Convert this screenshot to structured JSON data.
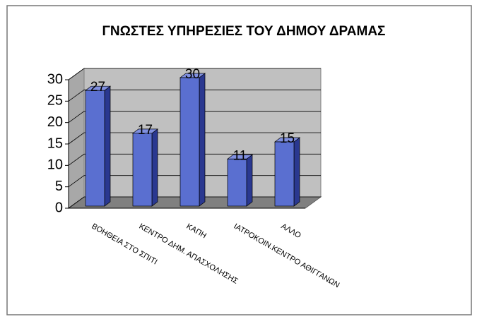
{
  "chart_data": {
    "type": "bar3d",
    "title": "ΓΝΩΣΤΕΣ ΥΠΗΡΕΣΙΕΣ ΤΟΥ ΔΗΜΟΥ ΔΡΑΜΑΣ",
    "categories": [
      "ΒΟΗΘΕΙΑ ΣΤΟ ΣΠΙΤΙ",
      "ΚΕΝΤΡΟ ΔΗΜ. ΑΠΑΣΧΟΛΗΣΗΣ",
      "ΚΑΠΗ",
      "ΙΑΤΡΟΚΟΙΝ.ΚΕΝΤΡΟ ΑΘΙΓΓΑΝΩΝ",
      "ΑΛΛΟ"
    ],
    "values": [
      27,
      17,
      30,
      11,
      15
    ],
    "color": "#5a6fd0",
    "ylim": [
      0,
      30
    ],
    "yticks": [
      0,
      5,
      10,
      15,
      20,
      25,
      30
    ],
    "grid": true
  }
}
